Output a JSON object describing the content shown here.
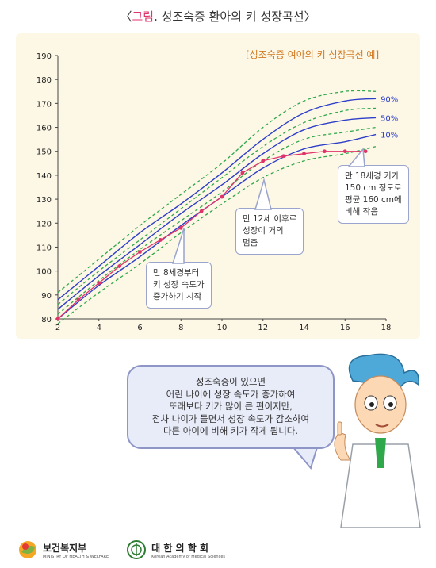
{
  "title": {
    "open": "〈",
    "highlight": "그림",
    "rest": ". 성조숙증 환아의 키 성장곡선",
    "close": "〉"
  },
  "chart_data": {
    "type": "line",
    "title": "[성조숙증 여아의 키 성장곡선 예]",
    "xlim": [
      2,
      18
    ],
    "ylim": [
      80,
      190
    ],
    "x_ticks": [
      2,
      4,
      6,
      8,
      10,
      12,
      14,
      16,
      18
    ],
    "y_ticks": [
      80,
      90,
      100,
      110,
      120,
      130,
      140,
      150,
      160,
      170,
      180,
      190
    ],
    "series": [
      {
        "name": "90%",
        "style": "solid",
        "color": "#2d3fc8",
        "x": [
          2,
          4,
          6,
          8,
          10,
          12,
          14,
          16,
          17.5
        ],
        "y": [
          88,
          102,
          116,
          128,
          141,
          155,
          166,
          171,
          172
        ]
      },
      {
        "name": "50%",
        "style": "solid",
        "color": "#2d3fc8",
        "x": [
          2,
          4,
          6,
          8,
          10,
          12,
          14,
          16,
          17.5
        ],
        "y": [
          84,
          98,
          111,
          124,
          136,
          149,
          159,
          163,
          164
        ]
      },
      {
        "name": "10%",
        "style": "solid",
        "color": "#2d3fc8",
        "x": [
          2,
          4,
          6,
          8,
          10,
          12,
          14,
          16,
          17.5
        ],
        "y": [
          80,
          94,
          106,
          119,
          131,
          143,
          151,
          154,
          157
        ]
      },
      {
        "name": "",
        "style": "dashed",
        "color": "#2ea84a",
        "x": [
          2,
          4,
          6,
          8,
          10,
          12,
          14,
          16,
          17.5
        ],
        "y": [
          91,
          105,
          119,
          132,
          145,
          160,
          171,
          175,
          175
        ]
      },
      {
        "name": "",
        "style": "dashed",
        "color": "#2ea84a",
        "x": [
          2,
          4,
          6,
          8,
          10,
          12,
          14,
          16,
          17.5
        ],
        "y": [
          86,
          100,
          113,
          126,
          139,
          152,
          162,
          167,
          168
        ]
      },
      {
        "name": "",
        "style": "dashed",
        "color": "#2ea84a",
        "x": [
          2,
          4,
          6,
          8,
          10,
          12,
          14,
          16,
          17.5
        ],
        "y": [
          82,
          96,
          109,
          121,
          133,
          146,
          155,
          158,
          160
        ]
      },
      {
        "name": "",
        "style": "dashed",
        "color": "#2ea84a",
        "x": [
          2,
          4,
          6,
          8,
          10,
          12,
          14,
          16,
          17.5
        ],
        "y": [
          78,
          91,
          103,
          116,
          128,
          139,
          146,
          149,
          152
        ]
      },
      {
        "name": "",
        "style": "marker",
        "color": "#e0336a",
        "x": [
          2,
          3,
          4,
          5,
          6,
          7,
          8,
          9,
          10,
          11,
          12,
          13,
          14,
          15,
          16,
          17
        ],
        "y": [
          80,
          88,
          95,
          102,
          108,
          113,
          118,
          125,
          131,
          141,
          146,
          148,
          149,
          150,
          150,
          150
        ]
      }
    ],
    "labels_90": "90%",
    "labels_50": "50%",
    "labels_10": "10%",
    "annotations": [
      {
        "lines": [
          "만 8세경부터",
          "키 성장 속도가",
          "증가하기 시작"
        ],
        "x": 8,
        "y": 118
      },
      {
        "lines": [
          "만 12세 이후로",
          "성장이 거의",
          "멈춤"
        ],
        "x": 12,
        "y": 146
      },
      {
        "lines": [
          "만 18세경 키가",
          "150 cm 정도로",
          "평균 160 cm에",
          "비해 작음"
        ],
        "x": 17,
        "y": 150
      }
    ]
  },
  "speech": {
    "lines": [
      "성조숙증이 있으면",
      "어린 나이에 성장 속도가 증가하여",
      "또래보다 키가 많이 큰 편이지만,",
      "점차 나이가 들면서 성장 속도가 감소하여",
      "다른 아이에 비해 키가 작게 됩니다."
    ]
  },
  "footer": {
    "logo1": {
      "name": "보건복지부",
      "sub": "MINISTRY OF HEALTH & WELFARE"
    },
    "logo2": {
      "name": "대 한 의 학 회",
      "sub": "Korean Academy of Medical Sciences"
    }
  }
}
